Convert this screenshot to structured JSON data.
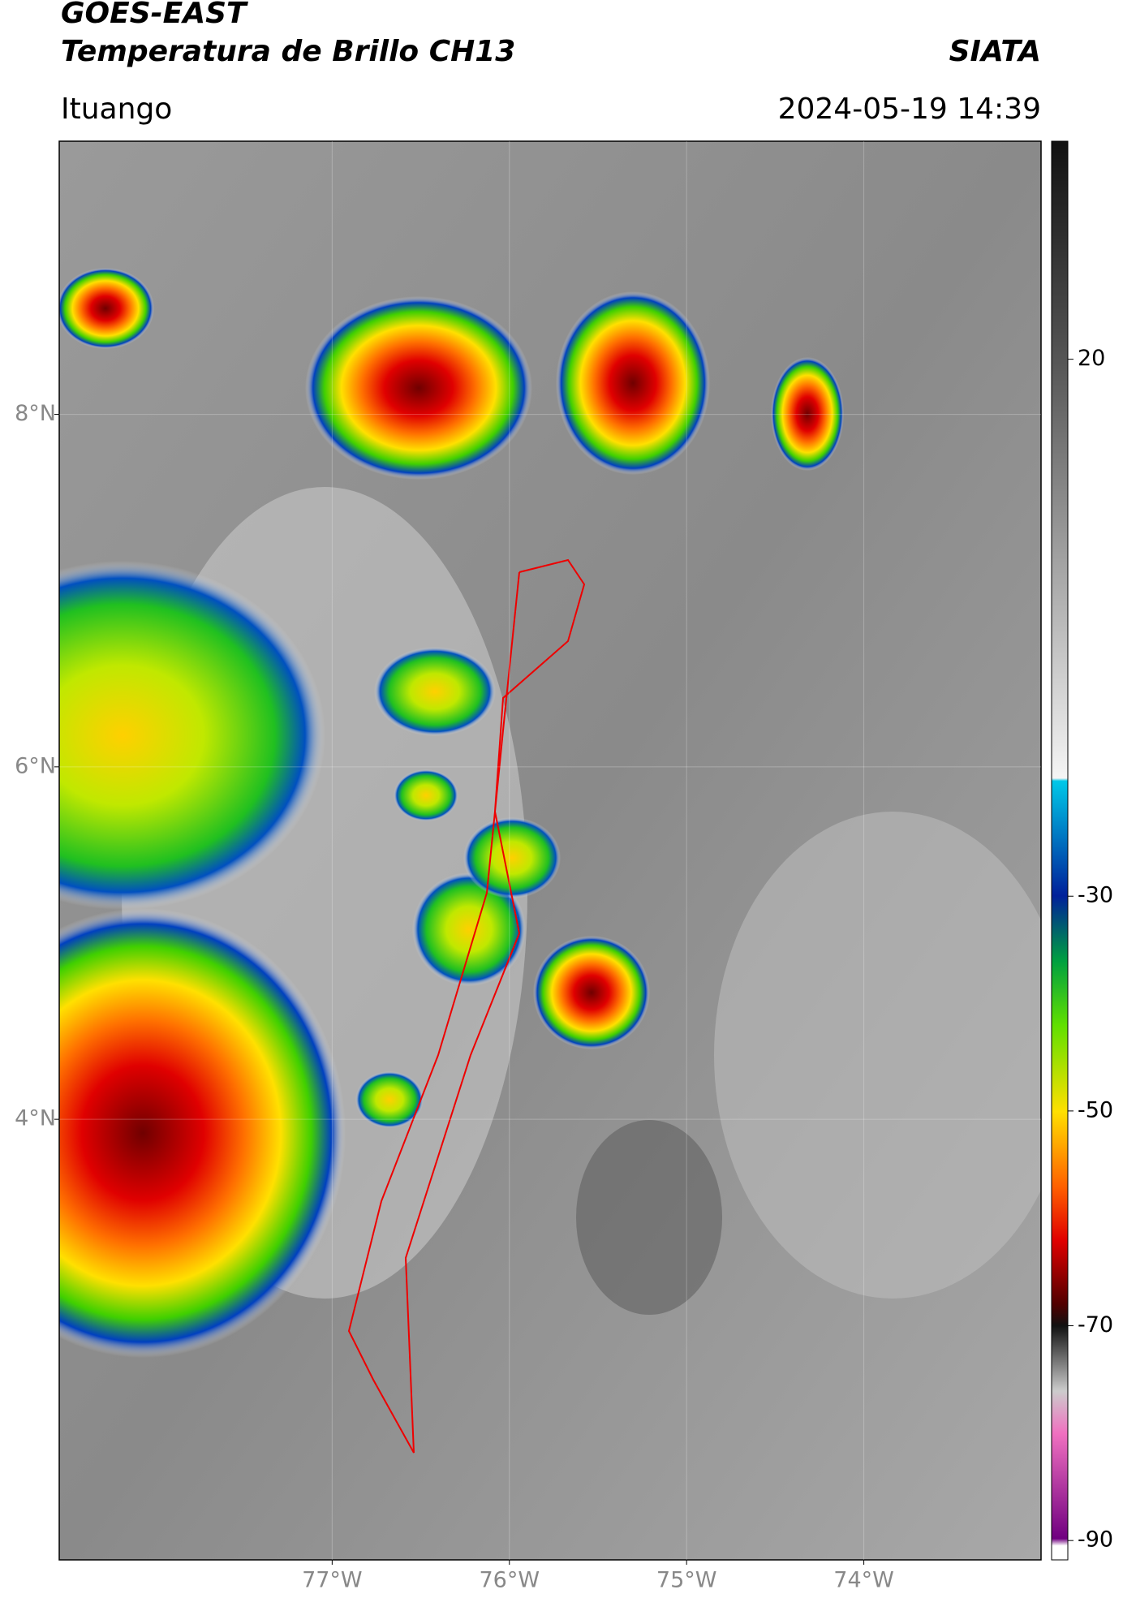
{
  "header": {
    "title": "GOES-EAST",
    "subtitle": "Temperatura de Brillo CH13",
    "agency": "SIATA",
    "region": "Ituango",
    "timestamp": "2024-05-19 14:39"
  },
  "map": {
    "lonlim": [
      -78.54,
      -73.0
    ],
    "latlim": [
      1.5,
      9.55
    ],
    "lonticks": [
      {
        "value": -77,
        "label": "77°W"
      },
      {
        "value": -76,
        "label": "76°W"
      },
      {
        "value": -75,
        "label": "75°W"
      },
      {
        "value": -74,
        "label": "74°W"
      }
    ],
    "latticks": [
      {
        "value": 8,
        "label": "8°N"
      },
      {
        "value": 6,
        "label": "6°N"
      },
      {
        "value": 4,
        "label": "4°N"
      }
    ],
    "grid": true,
    "colorbar": {
      "lim": [
        -91.8,
        40.3
      ],
      "ticks": [
        20,
        -30,
        -50,
        -70,
        -90
      ]
    }
  }
}
